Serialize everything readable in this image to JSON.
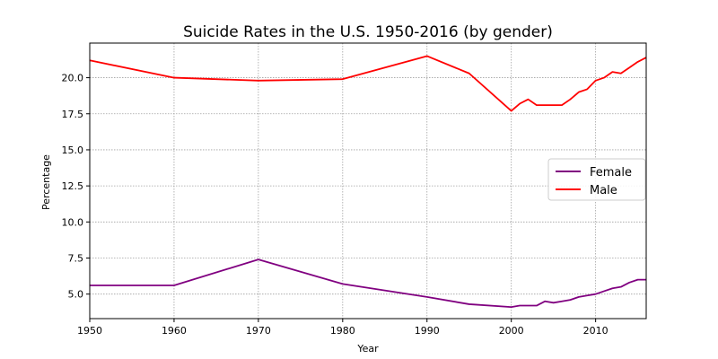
{
  "chart_data": {
    "type": "line",
    "title": "Suicide Rates in the U.S. 1950-2016 (by gender)",
    "xlabel": "Year",
    "ylabel": "Percentage",
    "xlim": [
      1950,
      2016
    ],
    "ylim": [
      3.3,
      22.4
    ],
    "xticks": [
      1950,
      1960,
      1970,
      1980,
      1990,
      2000,
      2010
    ],
    "yticks": [
      5.0,
      7.5,
      10.0,
      12.5,
      15.0,
      17.5,
      20.0
    ],
    "grid": true,
    "legend_position": "center-right",
    "series": [
      {
        "name": "Female",
        "color": "#800080",
        "x": [
          1950,
          1960,
          1970,
          1980,
          1990,
          1995,
          2000,
          2001,
          2002,
          2003,
          2004,
          2005,
          2006,
          2007,
          2008,
          2009,
          2010,
          2011,
          2012,
          2013,
          2014,
          2015,
          2016
        ],
        "y": [
          5.6,
          5.6,
          7.4,
          5.7,
          4.8,
          4.3,
          4.1,
          4.2,
          4.2,
          4.2,
          4.5,
          4.4,
          4.5,
          4.6,
          4.8,
          4.9,
          5.0,
          5.2,
          5.4,
          5.5,
          5.8,
          6.0,
          6.0
        ]
      },
      {
        "name": "Male",
        "color": "#ff0000",
        "x": [
          1950,
          1960,
          1970,
          1980,
          1990,
          1995,
          2000,
          2001,
          2002,
          2003,
          2004,
          2005,
          2006,
          2007,
          2008,
          2009,
          2010,
          2011,
          2012,
          2013,
          2014,
          2015,
          2016
        ],
        "y": [
          21.2,
          20.0,
          19.8,
          19.9,
          21.5,
          20.3,
          17.7,
          18.2,
          18.5,
          18.1,
          18.1,
          18.1,
          18.1,
          18.5,
          19.0,
          19.2,
          19.8,
          20.0,
          20.4,
          20.3,
          20.7,
          21.1,
          21.4
        ]
      }
    ]
  }
}
